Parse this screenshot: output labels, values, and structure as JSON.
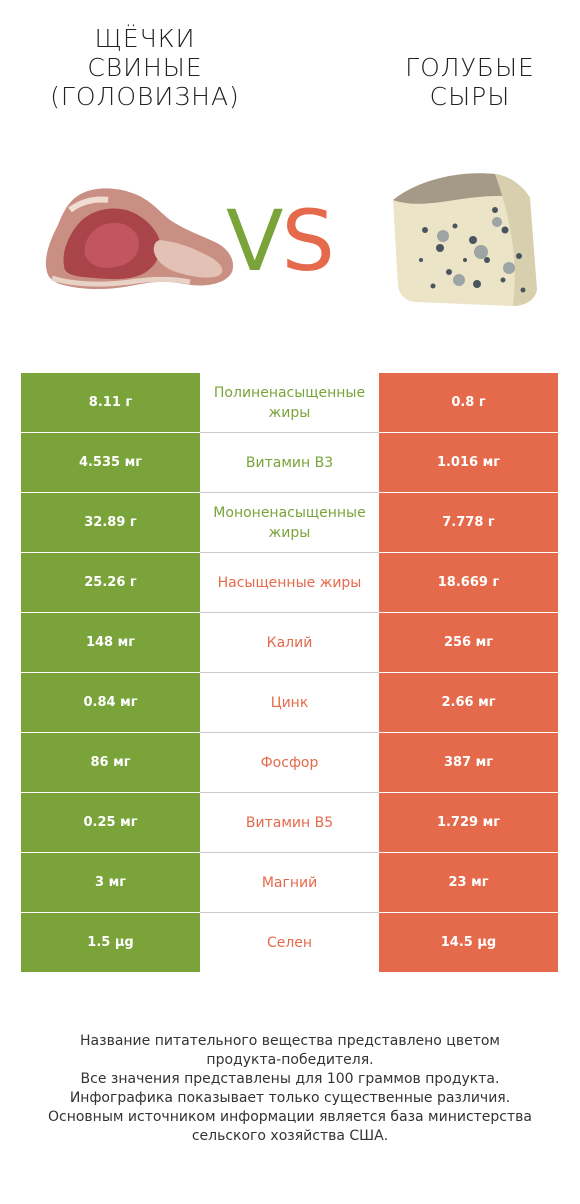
{
  "left_product": {
    "title_lines": [
      "ЩЁЧКИ",
      "СВИНЫЕ",
      "(ГОЛОВИЗНА)"
    ],
    "color": "#7aa33a",
    "image_icon": "pork-cheek-meat-image"
  },
  "right_product": {
    "title_lines": [
      "ГОЛУБЫЕ",
      "СЫРЫ"
    ],
    "color": "#e56a4c",
    "image_icon": "blue-cheese-wedge-image"
  },
  "vs": {
    "v": "V",
    "s": "S"
  },
  "rows": [
    {
      "left": "8.11 г",
      "nutrient": "Полиненасыщенные жиры",
      "right": "0.8 г",
      "winner": "left"
    },
    {
      "left": "4.535 мг",
      "nutrient": "Витамин B3",
      "right": "1.016 мг",
      "winner": "left"
    },
    {
      "left": "32.89 г",
      "nutrient": "Мононенасыщенные жиры",
      "right": "7.778 г",
      "winner": "left"
    },
    {
      "left": "25.26 г",
      "nutrient": "Насыщенные жиры",
      "right": "18.669 г",
      "winner": "right"
    },
    {
      "left": "148 мг",
      "nutrient": "Калий",
      "right": "256 мг",
      "winner": "right"
    },
    {
      "left": "0.84 мг",
      "nutrient": "Цинк",
      "right": "2.66 мг",
      "winner": "right"
    },
    {
      "left": "86 мг",
      "nutrient": "Фосфор",
      "right": "387 мг",
      "winner": "right"
    },
    {
      "left": "0.25 мг",
      "nutrient": "Витамин B5",
      "right": "1.729 мг",
      "winner": "right"
    },
    {
      "left": "3 мг",
      "nutrient": "Магний",
      "right": "23 мг",
      "winner": "right"
    },
    {
      "left": "1.5 µg",
      "nutrient": "Селен",
      "right": "14.5 µg",
      "winner": "right"
    }
  ],
  "footnote_lines": [
    "Название питательного вещества представлено цветом",
    "продукта-победителя.",
    "Все значения представлены для 100 граммов продукта.",
    "Инфографика показывает только существенные различия.",
    "Основным источником информации является база министерства",
    "сельского хозяйства США."
  ]
}
